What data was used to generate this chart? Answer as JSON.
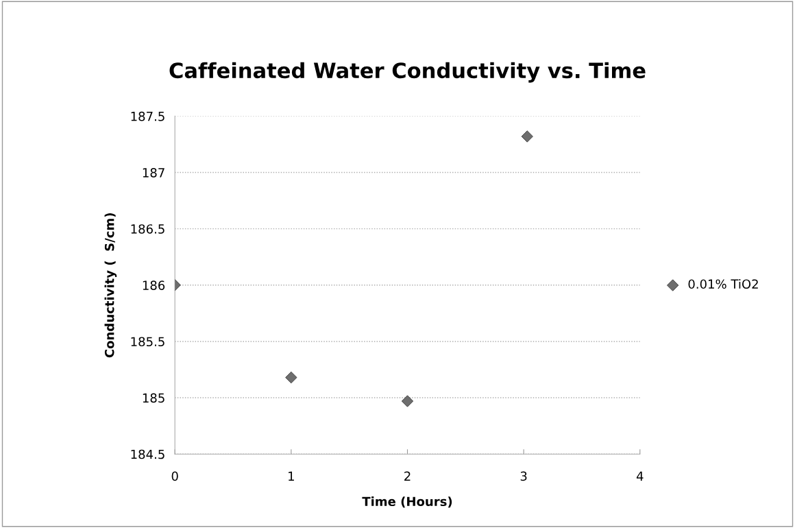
{
  "chart_data": {
    "type": "scatter",
    "title": "Caffeinated Water Conductivity vs. Time",
    "xlabel": "Time (Hours)",
    "ylabel": "Conductivity (  S/cm)",
    "x": [
      0,
      1,
      2,
      3.03
    ],
    "series": [
      {
        "name": "0.01% TiO2",
        "color": "#6e6e6e",
        "values": [
          186.0,
          185.18,
          184.97,
          187.32
        ]
      }
    ],
    "xlim": [
      0,
      4
    ],
    "xticks": [
      0,
      1,
      2,
      3,
      4
    ],
    "ylim": [
      184.5,
      187.5
    ],
    "yticks": [
      184.5,
      185,
      185.5,
      186,
      186.5,
      187,
      187.5
    ],
    "grid": "y",
    "legend": "right",
    "marker": "diamond"
  }
}
